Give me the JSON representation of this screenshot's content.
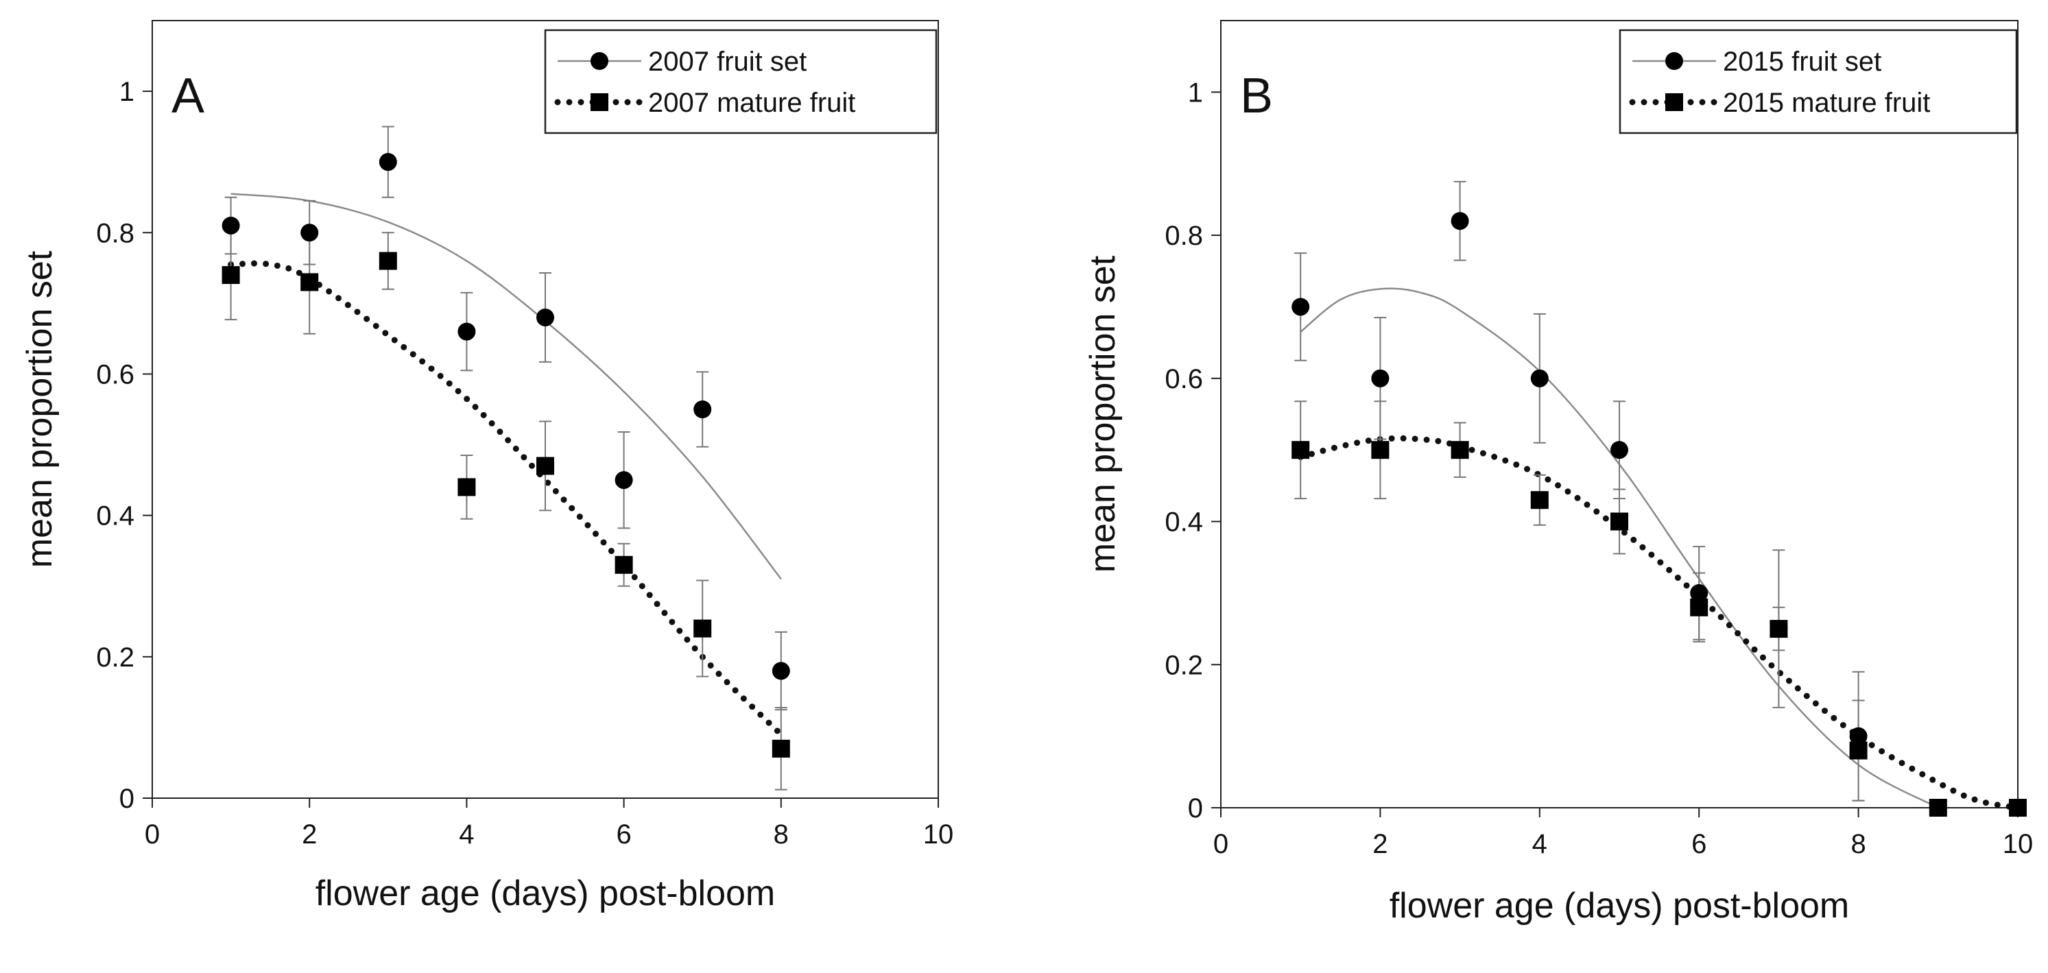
{
  "chart_data": [
    {
      "type": "scatter",
      "panel_label": "A",
      "xlabel": "flower age (days) post-bloom",
      "ylabel": "mean proportion set",
      "xlim": [
        0,
        10
      ],
      "ylim": [
        0,
        1.1
      ],
      "xticks": [
        0,
        2,
        4,
        6,
        8,
        10
      ],
      "yticks": [
        0,
        0.2,
        0.4,
        0.6,
        0.8,
        1
      ],
      "xtick_labels": [
        "0",
        "2",
        "4",
        "6",
        "8",
        "10"
      ],
      "ytick_labels": [
        "0",
        "0.2",
        "0.4",
        "0.6",
        "0.8",
        "1"
      ],
      "series": [
        {
          "name": "2007 fruit set",
          "marker": "circle",
          "x": [
            1,
            2,
            3,
            4,
            5,
            6,
            7,
            8
          ],
          "values": [
            0.81,
            0.8,
            0.9,
            0.66,
            0.68,
            0.45,
            0.55,
            0.18
          ],
          "errors": [
            0.04,
            0.045,
            0.05,
            0.055,
            0.063,
            0.068,
            0.053,
            0.055
          ],
          "fit": {
            "style": "solid",
            "x": [
              1,
              2,
              3,
              4,
              5,
              6,
              7,
              8
            ],
            "y": [
              0.855,
              0.845,
              0.815,
              0.76,
              0.675,
              0.575,
              0.455,
              0.31
            ]
          }
        },
        {
          "name": "2007 mature fruit",
          "marker": "square",
          "x": [
            1,
            2,
            3,
            4,
            5,
            6,
            7,
            8
          ],
          "values": [
            0.74,
            0.73,
            0.76,
            0.44,
            0.47,
            0.33,
            0.24,
            0.07
          ],
          "errors": [
            0.063,
            0.073,
            0.04,
            0.045,
            0.063,
            0.03,
            0.068,
            0.058
          ],
          "fit": {
            "style": "dotted",
            "x": [
              1,
              1.5,
              2,
              3,
              4,
              5,
              6,
              7,
              8
            ],
            "y": [
              0.755,
              0.755,
              0.735,
              0.655,
              0.565,
              0.45,
              0.33,
              0.2,
              0.09
            ]
          }
        }
      ]
    },
    {
      "type": "scatter",
      "panel_label": "B",
      "xlabel": "flower age (days) post-bloom",
      "ylabel": "mean proportion set",
      "xlim": [
        0,
        10
      ],
      "ylim": [
        0,
        1.1
      ],
      "xticks": [
        0,
        2,
        4,
        6,
        8,
        10
      ],
      "yticks": [
        0,
        0.2,
        0.4,
        0.6,
        0.8,
        1
      ],
      "xtick_labels": [
        "0",
        "2",
        "4",
        "6",
        "8",
        "10"
      ],
      "ytick_labels": [
        "0",
        "0.2",
        "0.4",
        "0.6",
        "0.8",
        "1"
      ],
      "series": [
        {
          "name": "2015 fruit set",
          "marker": "circle",
          "x": [
            1,
            2,
            3,
            4,
            5,
            6,
            7,
            8,
            9,
            10
          ],
          "values": [
            0.7,
            0.6,
            0.82,
            0.6,
            0.5,
            0.3,
            0.25,
            0.1,
            0.0,
            0.0
          ],
          "errors": [
            0.075,
            0.085,
            0.055,
            0.09,
            0.068,
            0.065,
            0.11,
            0.09,
            0,
            0
          ],
          "fit": {
            "style": "solid",
            "x": [
              1,
              1.5,
              2,
              2.5,
              3,
              4,
              5,
              6,
              7,
              8,
              9
            ],
            "y": [
              0.665,
              0.71,
              0.725,
              0.72,
              0.695,
              0.61,
              0.48,
              0.32,
              0.17,
              0.06,
              0.0
            ]
          }
        },
        {
          "name": "2015 mature fruit",
          "marker": "square",
          "x": [
            1,
            2,
            3,
            4,
            5,
            6,
            7,
            8,
            9,
            10
          ],
          "values": [
            0.5,
            0.5,
            0.5,
            0.43,
            0.4,
            0.28,
            0.25,
            0.08,
            0.0,
            0.0
          ],
          "errors": [
            0.068,
            0.068,
            0.038,
            0.035,
            0.045,
            0.048,
            0.03,
            0.07,
            0,
            0
          ],
          "fit": {
            "style": "dotted",
            "x": [
              1,
              1.5,
              2,
              2.5,
              3,
              4,
              5,
              6,
              7,
              8,
              9,
              9.5,
              10
            ],
            "y": [
              0.49,
              0.505,
              0.515,
              0.515,
              0.505,
              0.465,
              0.39,
              0.295,
              0.19,
              0.1,
              0.035,
              0.01,
              0.0
            ]
          }
        }
      ]
    }
  ]
}
